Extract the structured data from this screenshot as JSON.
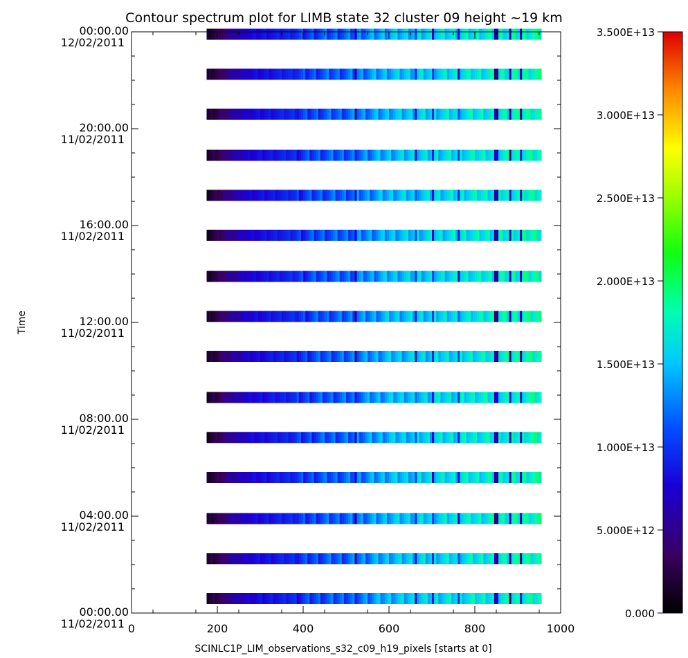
{
  "chart_data": {
    "type": "heatmap",
    "title": "Contour spectrum plot for LIMB state 32 cluster 09 height ~19 km",
    "xlabel": "SCINLC1P_LIM_observations_s32_c09_h19_pixels [starts at 0]",
    "ylabel": "Time",
    "xlim": [
      0,
      1000
    ],
    "x_ticks": [
      "0",
      "200",
      "400",
      "600",
      "800",
      "1000"
    ],
    "ylim": [
      "00:00.00 11/02/2011",
      "00:00.00 12/02/2011"
    ],
    "y_ticks": [
      {
        "time": "00:00.00",
        "date": "11/02/2011",
        "hours": 0
      },
      {
        "time": "04:00.00",
        "date": "11/02/2011",
        "hours": 4
      },
      {
        "time": "08:00.00",
        "date": "11/02/2011",
        "hours": 8
      },
      {
        "time": "12:00.00",
        "date": "11/02/2011",
        "hours": 12
      },
      {
        "time": "16:00.00",
        "date": "11/02/2011",
        "hours": 16
      },
      {
        "time": "20:00.00",
        "date": "11/02/2011",
        "hours": 20
      },
      {
        "time": "00:00.00",
        "date": "12/02/2011",
        "hours": 24
      }
    ],
    "colorbar": {
      "min": 0,
      "max": 35000000000000.0,
      "tick_labels": [
        "0.000",
        "5.000E+12",
        "1.000E+13",
        "1.500E+13",
        "2.000E+13",
        "2.500E+13",
        "3.000E+13",
        "3.500E+13"
      ],
      "tick_values": [
        0,
        5000000000000.0,
        10000000000000.0,
        15000000000000.0,
        20000000000000.0,
        25000000000000.0,
        30000000000000.0,
        35000000000000.0
      ]
    },
    "pixel_range": [
      175,
      955
    ],
    "observation_hours": [
      0.6,
      2.25,
      3.9,
      5.6,
      7.25,
      8.9,
      10.6,
      12.25,
      13.9,
      15.6,
      17.25,
      18.9,
      20.6,
      22.25,
      23.9
    ],
    "spectrum_profile": [
      {
        "pixel": 175,
        "value": 1500000000000.0
      },
      {
        "pixel": 200,
        "value": 3000000000000.0
      },
      {
        "pixel": 230,
        "value": 5500000000000.0
      },
      {
        "pixel": 270,
        "value": 7500000000000.0
      },
      {
        "pixel": 320,
        "value": 8500000000000.0
      },
      {
        "pixel": 380,
        "value": 9500000000000.0
      },
      {
        "pixel": 440,
        "value": 11000000000000.0
      },
      {
        "pixel": 500,
        "value": 11500000000000.0
      },
      {
        "pixel": 550,
        "value": 13000000000000.0
      },
      {
        "pixel": 600,
        "value": 14500000000000.0
      },
      {
        "pixel": 650,
        "value": 15000000000000.0
      },
      {
        "pixel": 700,
        "value": 15500000000000.0
      },
      {
        "pixel": 750,
        "value": 16000000000000.0
      },
      {
        "pixel": 800,
        "value": 16500000000000.0
      },
      {
        "pixel": 860,
        "value": 17000000000000.0
      },
      {
        "pixel": 900,
        "value": 17500000000000.0
      },
      {
        "pixel": 955,
        "value": 18000000000000.0
      }
    ],
    "dips": [
      {
        "pixel": 520,
        "value": 7000000000000.0
      },
      {
        "pixel": 660,
        "value": 10000000000000.0
      },
      {
        "pixel": 700,
        "value": 9000000000000.0
      },
      {
        "pixel": 760,
        "value": 9500000000000.0
      },
      {
        "pixel": 848,
        "value": 6000000000000.0
      },
      {
        "pixel": 880,
        "value": 6500000000000.0
      },
      {
        "pixel": 905,
        "value": 7000000000000.0
      }
    ],
    "grid": false,
    "legend": "colorbar-right"
  }
}
